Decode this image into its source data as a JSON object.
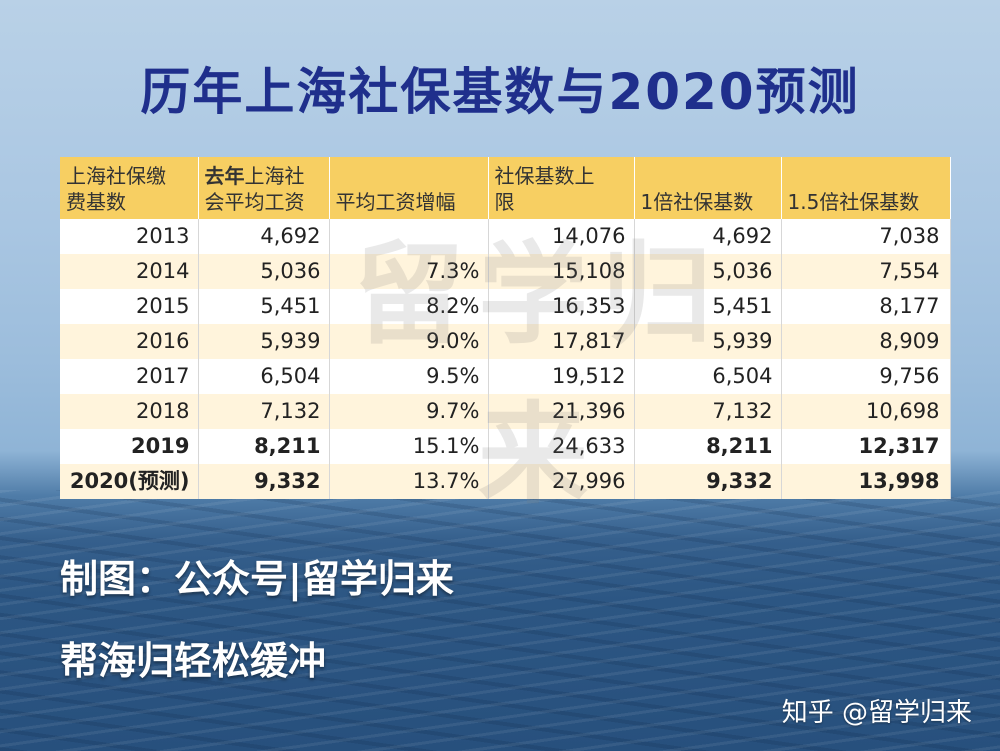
{
  "title": "历年上海社保基数与2020预测",
  "watermark": "留学归来",
  "caption1": "制图：公众号|留学归来",
  "caption2": "帮海归轻松缓冲",
  "credit": "知乎 @留学归来",
  "chart_data": {
    "type": "table",
    "columns": [
      {
        "line1": "上海社保缴",
        "line2": "费基数"
      },
      {
        "line1_bold": "去年",
        "line1_rest": "上海社",
        "line2": "会平均工资"
      },
      {
        "line1": "",
        "line2": "平均工资增幅"
      },
      {
        "line1": "社保基数上",
        "line2": "限"
      },
      {
        "line1": "",
        "line2": "1倍社保基数"
      },
      {
        "line1": "",
        "line2": "1.5倍社保基数"
      }
    ],
    "rows": [
      {
        "year": "2013",
        "avg": "4,692",
        "growth": "",
        "cap": "14,076",
        "base1": "4,692",
        "base15": "7,038",
        "bold": false
      },
      {
        "year": "2014",
        "avg": "5,036",
        "growth": "7.3%",
        "cap": "15,108",
        "base1": "5,036",
        "base15": "7,554",
        "bold": false
      },
      {
        "year": "2015",
        "avg": "5,451",
        "growth": "8.2%",
        "cap": "16,353",
        "base1": "5,451",
        "base15": "8,177",
        "bold": false
      },
      {
        "year": "2016",
        "avg": "5,939",
        "growth": "9.0%",
        "cap": "17,817",
        "base1": "5,939",
        "base15": "8,909",
        "bold": false
      },
      {
        "year": "2017",
        "avg": "6,504",
        "growth": "9.5%",
        "cap": "19,512",
        "base1": "6,504",
        "base15": "9,756",
        "bold": false
      },
      {
        "year": "2018",
        "avg": "7,132",
        "growth": "9.7%",
        "cap": "21,396",
        "base1": "7,132",
        "base15": "10,698",
        "bold": false
      },
      {
        "year": "2019",
        "avg": "8,211",
        "growth": "15.1%",
        "cap": "24,633",
        "base1": "8,211",
        "base15": "12,317",
        "bold": true
      },
      {
        "year": "2020(预测)",
        "avg": "9,332",
        "growth": "13.7%",
        "cap": "27,996",
        "base1": "9,332",
        "base15": "13,998",
        "bold": true
      }
    ]
  }
}
